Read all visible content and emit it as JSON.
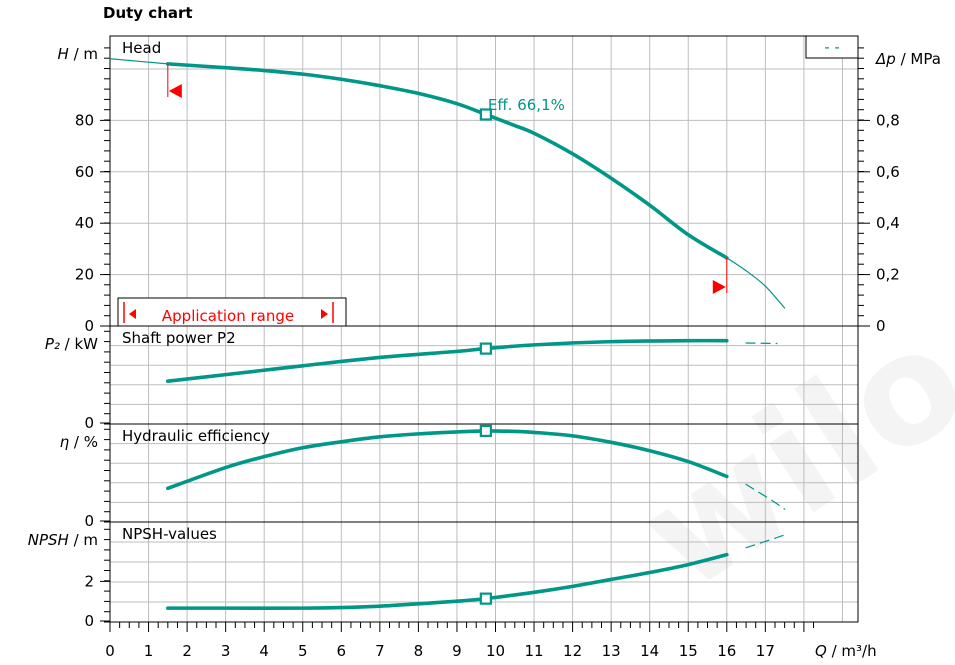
{
  "header": {
    "title": "Duty chart"
  },
  "watermark": "wilo",
  "chart_data": {
    "type": "line",
    "x_axis": {
      "label_var": "Q",
      "label_unit": "/ m³/h",
      "range": [
        0,
        18.5
      ],
      "ticks": [
        "0",
        "1",
        "2",
        "3",
        "4",
        "5",
        "6",
        "7",
        "8",
        "9",
        "10",
        "11",
        "12",
        "13",
        "14",
        "15",
        "16",
        "17"
      ]
    },
    "best_efficiency_point": {
      "q": 9.75,
      "label": "Eff.  66,1%"
    },
    "application_range": {
      "label": "Application range",
      "q_min": 1.5,
      "q_max": 16
    },
    "panels": [
      {
        "name": "head",
        "title": "Head",
        "ylabel_var": "H",
        "ylabel_unit": "/ m",
        "ylim": [
          0,
          105
        ],
        "yticks": [
          "0",
          "20",
          "40",
          "60",
          "80"
        ],
        "secondary_axis": {
          "label_var": "Δp",
          "label_unit": "/ MPa",
          "ticks": [
            "0",
            "0,2",
            "0,4",
            "0,6",
            "0,8"
          ],
          "tick_values": [
            0,
            20,
            40,
            60,
            80
          ]
        },
        "legend": "- -",
        "series": [
          {
            "name": "curve",
            "style": "thick",
            "x": [
              1.5,
              3,
              4,
              5,
              6,
              7,
              8,
              9,
              9.75,
              10.5,
              11,
              12,
              13,
              14,
              15,
              16
            ],
            "y": [
              102,
              100.5,
              99.4,
              98,
              96,
              93.5,
              90.5,
              86.5,
              82.3,
              78,
              75,
              67,
              57.5,
              47,
              35.5,
              26.5
            ]
          },
          {
            "name": "extension",
            "style": "thin",
            "x": [
              0,
              1.5
            ],
            "y": [
              104,
              102
            ]
          },
          {
            "name": "extension",
            "style": "thin",
            "x": [
              16,
              16.5,
              17,
              17.5
            ],
            "y": [
              26.5,
              21.5,
              15.5,
              7
            ]
          }
        ]
      },
      {
        "name": "power",
        "title": "Shaft power P2",
        "ylabel_var": "P₂",
        "ylabel_unit": "/ kW",
        "ylim": [
          0,
          10
        ],
        "yticks": [
          "0"
        ],
        "series": [
          {
            "name": "curve",
            "style": "thick",
            "x": [
              1.5,
              3,
              5,
              7,
              9,
              9.75,
              11,
              13,
              15,
              16
            ],
            "y": [
              4.5,
              5.2,
              6.15,
              7.05,
              7.7,
              8.0,
              8.4,
              8.75,
              8.85,
              8.85
            ]
          },
          {
            "name": "extension",
            "style": "dash",
            "x": [
              16.5,
              17.3
            ],
            "y": [
              8.6,
              8.55
            ]
          }
        ]
      },
      {
        "name": "efficiency",
        "title": "Hydraulic efficiency",
        "ylabel_var": "η",
        "ylabel_unit": "/ %",
        "ylim": [
          0,
          10
        ],
        "yticks": [
          "0"
        ],
        "series": [
          {
            "name": "curve",
            "style": "thick",
            "x": [
              1.5,
              3,
              4,
              5,
              6,
              7,
              8,
              9,
              9.75,
              10.5,
              11,
              12,
              13,
              14,
              15,
              16
            ],
            "y": [
              3.3,
              5.4,
              6.5,
              7.4,
              8.0,
              8.5,
              8.8,
              9.0,
              9.1,
              9.05,
              8.95,
              8.6,
              7.95,
              7.1,
              6.0,
              4.5
            ]
          },
          {
            "name": "extension",
            "style": "dash",
            "x": [
              16.5,
              17.2,
              17.5
            ],
            "y": [
              3.7,
              2.0,
              1.2
            ]
          }
        ]
      },
      {
        "name": "npsh",
        "title": "NPSH-values",
        "ylabel_var": "NPSH",
        "ylabel_unit": "/ m",
        "ylim": [
          0,
          5.3
        ],
        "yticks": [
          "0",
          "2"
        ],
        "series": [
          {
            "name": "curve",
            "style": "thick",
            "x": [
              1.5,
              3,
              5,
              6,
              7,
              8,
              9,
              9.75,
              11,
              12,
              13,
              14,
              15,
              16
            ],
            "y": [
              0.65,
              0.65,
              0.65,
              0.68,
              0.75,
              0.87,
              1.0,
              1.13,
              1.45,
              1.75,
              2.1,
              2.45,
              2.85,
              3.35
            ]
          },
          {
            "name": "extension",
            "style": "dash",
            "x": [
              16.5,
              17.2,
              17.5
            ],
            "y": [
              3.7,
              4.15,
              4.35
            ]
          }
        ]
      }
    ]
  }
}
